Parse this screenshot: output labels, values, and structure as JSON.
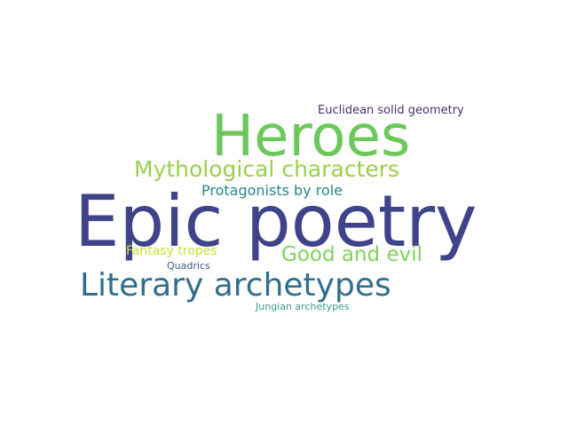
{
  "words": [
    {
      "key": "euclidean",
      "text": "Euclidean solid geometry",
      "color": "#4a2f6b"
    },
    {
      "key": "heroes",
      "text": "Heroes",
      "color": "#6cc85a"
    },
    {
      "key": "mythological",
      "text": "Mythological characters",
      "color": "#9bd04a"
    },
    {
      "key": "protagonists",
      "text": "Protagonists by role",
      "color": "#26878a"
    },
    {
      "key": "epic",
      "text": "Epic poetry",
      "color": "#3f448a"
    },
    {
      "key": "fantasy",
      "text": "Fantasy tropes",
      "color": "#c8df2f"
    },
    {
      "key": "good",
      "text": "Good and evil",
      "color": "#7ed35a"
    },
    {
      "key": "quadrics",
      "text": "Quadrics",
      "color": "#3a5a8a"
    },
    {
      "key": "literary",
      "text": "Literary archetypes",
      "color": "#2f6f8c"
    },
    {
      "key": "jungian",
      "text": "Jungian archetypes",
      "color": "#3c9a8a"
    }
  ]
}
